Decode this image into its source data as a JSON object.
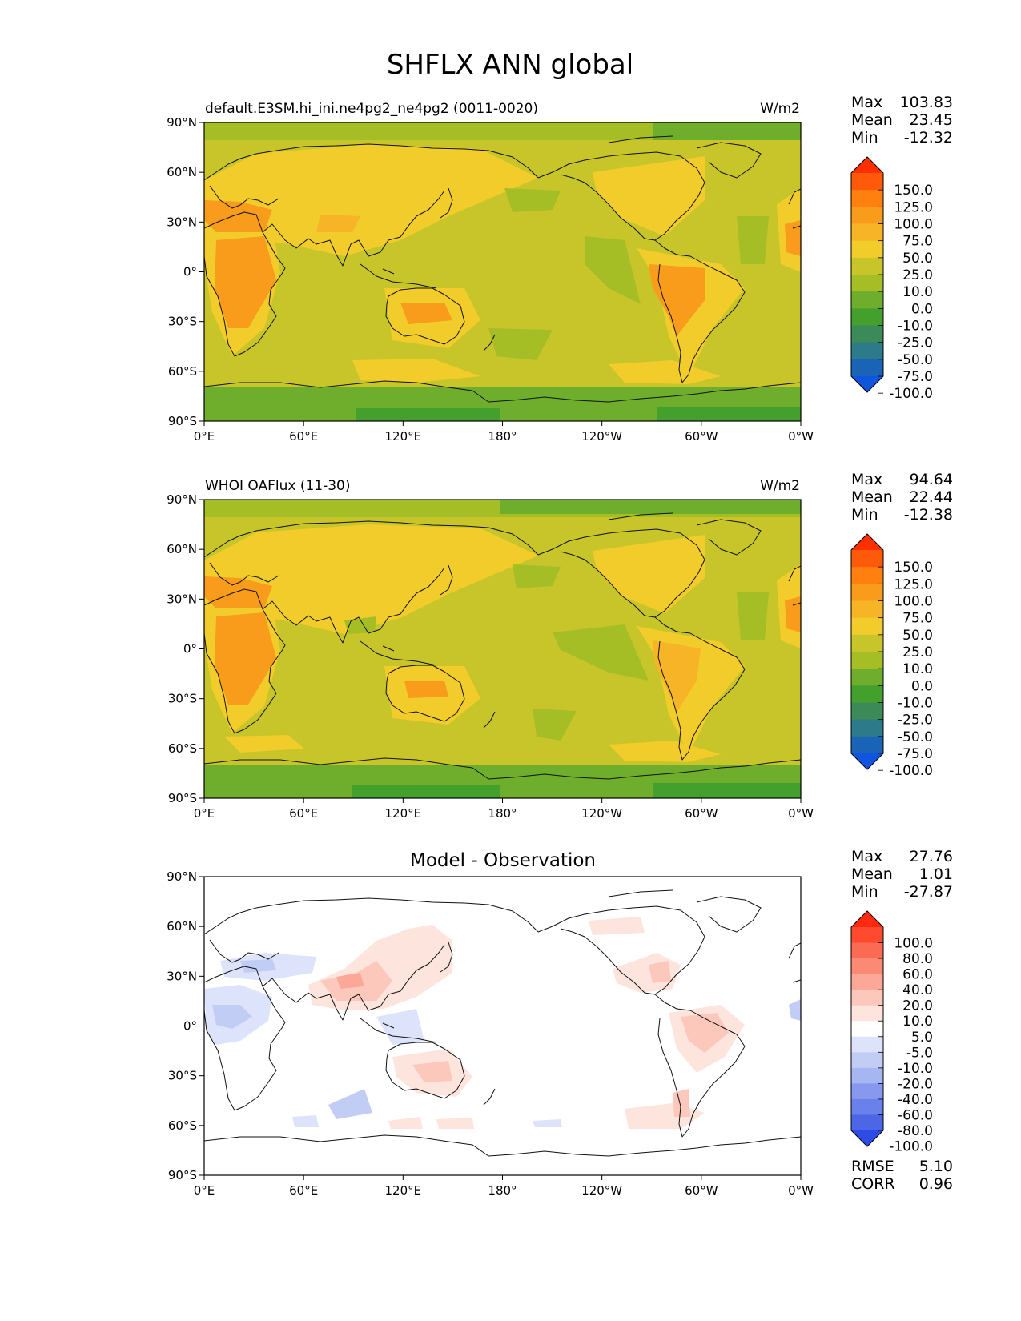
{
  "title": "SHFLX ANN global",
  "lon_ticks": [
    "0°E",
    "60°E",
    "120°E",
    "180°",
    "120°W",
    "60°W",
    "0°W"
  ],
  "lat_ticks": [
    "90°N",
    "60°N",
    "30°N",
    "0°",
    "30°S",
    "60°S",
    "90°S"
  ],
  "stat_labels": {
    "max": "Max",
    "mean": "Mean",
    "min": "Min",
    "rmse": "RMSE",
    "corr": "CORR"
  },
  "chart_data": [
    {
      "type": "heatmap",
      "panel": "test",
      "title_left": "default.E3SM.hi_ini.ne4pg2_ne4pg2 (0011-0020)",
      "title_right": "W/m2",
      "stats": {
        "max": "103.83",
        "mean": "23.45",
        "min": "-12.32"
      },
      "colorbar": {
        "labels": [
          "150.0",
          "125.0",
          "100.0",
          "75.0",
          "50.0",
          "25.0",
          "10.0",
          "0.0",
          "-10.0",
          "-25.0",
          "-50.0",
          "-75.0",
          "-100.0"
        ],
        "colors": [
          "#ff2f00",
          "#ff5a0a",
          "#ff7f0f",
          "#f99b1b",
          "#f7b427",
          "#f1cc2a",
          "#c8c52a",
          "#a5be26",
          "#6eae2c",
          "#44a02d",
          "#3c8a58",
          "#2d7a8a",
          "#1a64b8",
          "#0f55e0"
        ]
      }
    },
    {
      "type": "heatmap",
      "panel": "reference",
      "title_left": "WHOI OAFlux (11-30)",
      "title_right": "W/m2",
      "stats": {
        "max": "94.64",
        "mean": "22.44",
        "min": "-12.38"
      },
      "colorbar": {
        "labels": [
          "150.0",
          "125.0",
          "100.0",
          "75.0",
          "50.0",
          "25.0",
          "10.0",
          "0.0",
          "-10.0",
          "-25.0",
          "-50.0",
          "-75.0",
          "-100.0"
        ],
        "colors": [
          "#ff2f00",
          "#ff5a0a",
          "#ff7f0f",
          "#f99b1b",
          "#f7b427",
          "#f1cc2a",
          "#c8c52a",
          "#a5be26",
          "#6eae2c",
          "#44a02d",
          "#3c8a58",
          "#2d7a8a",
          "#1a64b8",
          "#0f55e0"
        ]
      }
    },
    {
      "type": "heatmap",
      "panel": "difference",
      "title_center": "Model - Observation",
      "stats": {
        "max": "27.76",
        "mean": "1.01",
        "min": "-27.87"
      },
      "metrics": {
        "rmse": "5.10",
        "corr": "0.96"
      },
      "colorbar": {
        "labels": [
          "100.0",
          "80.0",
          "60.0",
          "40.0",
          "20.0",
          "10.0",
          "5.0",
          "-5.0",
          "-10.0",
          "-20.0",
          "-40.0",
          "-60.0",
          "-80.0",
          "-100.0"
        ],
        "colors": [
          "#ff2a10",
          "#ff4a30",
          "#fb6a52",
          "#fb8a74",
          "#fca898",
          "#fcc8bc",
          "#fde4dc",
          "#ffffff",
          "#dde3fa",
          "#c2cdf6",
          "#a6b6f2",
          "#8799ee",
          "#6a80ea",
          "#4d66e6",
          "#2d4ce6"
        ]
      }
    }
  ]
}
